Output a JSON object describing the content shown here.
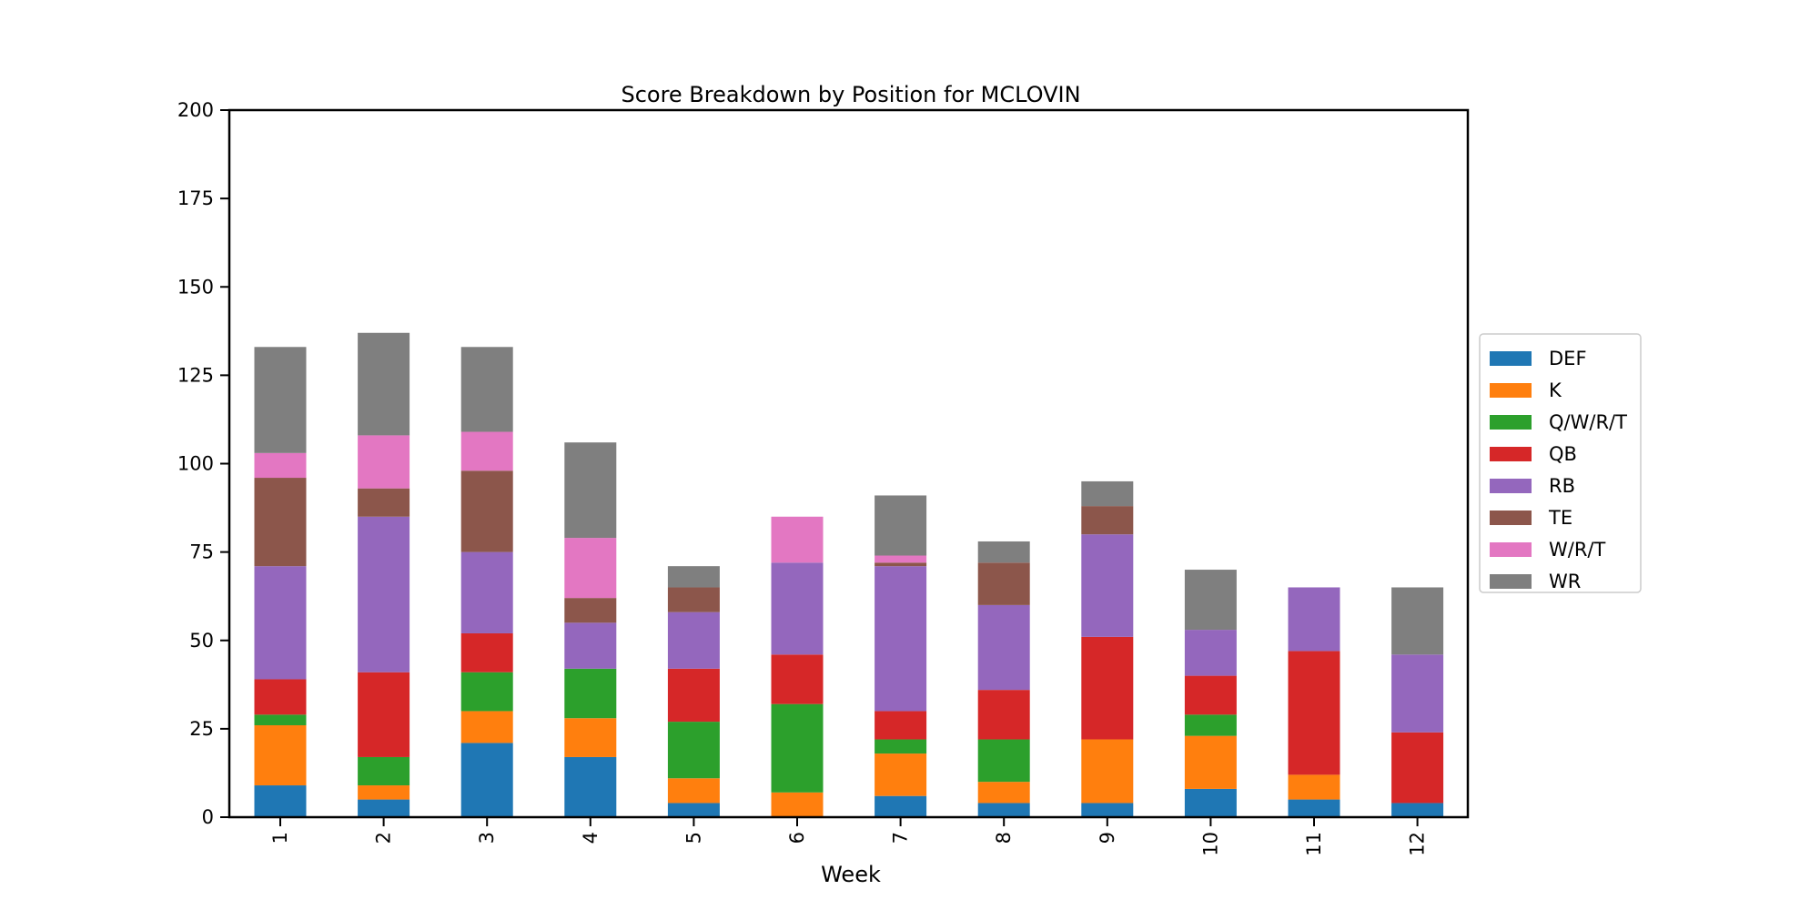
{
  "chart_data": {
    "type": "bar",
    "stacked": true,
    "title": "Score Breakdown by Position for MCLOVIN",
    "xlabel": "Week",
    "ylabel": "",
    "ylim": [
      0,
      200
    ],
    "yticks": [
      "0",
      "25",
      "50",
      "75",
      "100",
      "125",
      "150",
      "175",
      "200"
    ],
    "categories": [
      "1",
      "2",
      "3",
      "4",
      "5",
      "6",
      "7",
      "8",
      "9",
      "10",
      "11",
      "12"
    ],
    "legend_position": "right",
    "grid": false,
    "series": [
      {
        "name": "DEF",
        "color": "#1f77b4",
        "values": [
          9,
          5,
          21,
          17,
          4,
          0,
          6,
          4,
          4,
          8,
          5,
          4
        ]
      },
      {
        "name": "K",
        "color": "#ff7f0e",
        "values": [
          17,
          4,
          9,
          11,
          7,
          7,
          12,
          6,
          18,
          15,
          7,
          0
        ]
      },
      {
        "name": "Q/W/R/T",
        "color": "#2ca02c",
        "values": [
          3,
          8,
          11,
          14,
          16,
          25,
          4,
          12,
          0,
          6,
          0,
          0
        ]
      },
      {
        "name": "QB",
        "color": "#d62728",
        "values": [
          10,
          24,
          11,
          0,
          15,
          14,
          8,
          14,
          29,
          11,
          35,
          20
        ]
      },
      {
        "name": "RB",
        "color": "#9467bd",
        "values": [
          32,
          44,
          23,
          13,
          16,
          26,
          41,
          24,
          29,
          13,
          18,
          22
        ]
      },
      {
        "name": "TE",
        "color": "#8c564b",
        "values": [
          25,
          8,
          23,
          7,
          7,
          0,
          1,
          12,
          8,
          0,
          0,
          0
        ]
      },
      {
        "name": "W/R/T",
        "color": "#e377c2",
        "values": [
          7,
          15,
          11,
          17,
          0,
          13,
          2,
          0,
          0,
          0,
          0,
          0
        ]
      },
      {
        "name": "WR",
        "color": "#7f7f7f",
        "values": [
          30,
          29,
          24,
          27,
          6,
          0,
          17,
          6,
          7,
          17,
          0,
          19
        ]
      }
    ]
  }
}
